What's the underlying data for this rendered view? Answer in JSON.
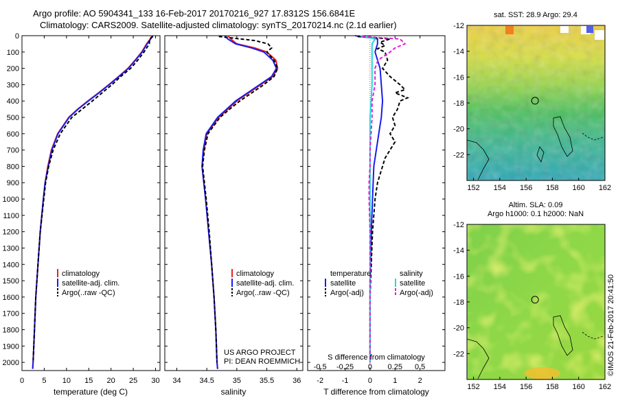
{
  "title_line1": "Argo profile: AO 5904341_133 16-Feb-2017 20170216_927 17.8312S 156.6841E",
  "title_line2": "Climatology: CARS2009. Satellite-adjusted climatology: synTS_20170214.nc (2.1d earlier)",
  "timestamp": "©IMOS 21-Feb-2017 20:41:50",
  "credit_line1": "US ARGO PROJECT",
  "credit_line2": "PI: DEAN ROEMMICH",
  "colors": {
    "climatology": "#e8201a",
    "satellite": "#1a1aee",
    "argo": "#000000",
    "sat_salinity": "#22d8dc",
    "argo_salinity": "#e020d8"
  },
  "chart_data": [
    {
      "type": "line",
      "xlabel": "temperature (deg C)",
      "ylabel": "",
      "xlim": [
        0,
        31
      ],
      "ylim": [
        2050,
        0
      ],
      "xticks": [
        "0",
        "5",
        "10",
        "15",
        "20",
        "25",
        "30"
      ],
      "yticks": [
        "0",
        "100",
        "200",
        "300",
        "400",
        "500",
        "600",
        "700",
        "800",
        "900",
        "1000",
        "1100",
        "1200",
        "1300",
        "1400",
        "1500",
        "1600",
        "1700",
        "1800",
        "1900",
        "2000"
      ],
      "legend": [
        "climatology",
        "satellite-adj. clim.",
        "Argo(..raw -QC)"
      ],
      "series": [
        {
          "name": "climatology",
          "depth": [
            0,
            20,
            50,
            100,
            150,
            200,
            250,
            300,
            350,
            400,
            450,
            500,
            600,
            700,
            800,
            900,
            1000,
            1200,
            1400,
            1600,
            1800,
            2000,
            2040
          ],
          "values": [
            29.2,
            28.8,
            28.0,
            26.9,
            25.4,
            23.8,
            21.7,
            19.5,
            17.2,
            14.8,
            12.5,
            10.5,
            8.0,
            6.6,
            5.8,
            5.2,
            4.8,
            4.1,
            3.6,
            3.1,
            2.8,
            2.5,
            2.4
          ]
        },
        {
          "name": "satellite-adj. clim.",
          "depth": [
            0,
            20,
            50,
            100,
            150,
            200,
            250,
            300,
            350,
            400,
            450,
            500,
            600,
            700,
            800,
            900,
            1000,
            1200,
            1400,
            1600,
            1800,
            2000,
            2040
          ],
          "values": [
            29.4,
            28.9,
            28.1,
            27.0,
            25.5,
            23.9,
            21.8,
            19.6,
            17.3,
            14.9,
            12.6,
            10.6,
            8.1,
            6.7,
            5.9,
            5.2,
            4.8,
            4.1,
            3.6,
            3.1,
            2.8,
            2.5,
            2.4
          ]
        },
        {
          "name": "Argo(..raw -QC)",
          "depth": [
            5,
            20,
            50,
            100,
            150,
            200,
            250,
            300,
            350,
            400,
            450,
            500,
            600,
            700,
            800,
            900,
            1000,
            1200,
            1400,
            1600,
            1800,
            2000
          ],
          "values": [
            29.4,
            28.7,
            28.6,
            27.4,
            26.0,
            24.4,
            22.2,
            20.2,
            18.0,
            15.8,
            13.5,
            11.2,
            8.6,
            7.0,
            6.0,
            5.3,
            4.9,
            4.1,
            3.6,
            3.1,
            2.8,
            2.5
          ]
        }
      ]
    },
    {
      "type": "line",
      "xlabel": "salinity",
      "ylabel": "",
      "xlim": [
        33.8,
        36.1
      ],
      "ylim": [
        2050,
        0
      ],
      "xticks": [
        "34",
        "34.5",
        "35",
        "35.5",
        "36"
      ],
      "legend": [
        "climatology",
        "satellite-adj. clim.",
        "Argo(..raw -QC)"
      ],
      "series": [
        {
          "name": "climatology",
          "depth": [
            0,
            20,
            50,
            75,
            100,
            150,
            200,
            250,
            300,
            350,
            400,
            450,
            500,
            600,
            700,
            800,
            900,
            1000,
            1200,
            1400,
            1600,
            1800,
            2000,
            2040
          ],
          "values": [
            34.85,
            34.9,
            35.0,
            35.3,
            35.5,
            35.65,
            35.68,
            35.6,
            35.4,
            35.2,
            35.0,
            34.85,
            34.7,
            34.5,
            34.45,
            34.42,
            34.45,
            34.48,
            34.53,
            34.58,
            34.62,
            34.65,
            34.67,
            34.68
          ]
        },
        {
          "name": "satellite-adj. clim.",
          "depth": [
            0,
            20,
            50,
            75,
            100,
            150,
            200,
            250,
            300,
            350,
            400,
            450,
            500,
            600,
            700,
            800,
            900,
            1000,
            1200,
            1400,
            1600,
            1800,
            2000,
            2040
          ],
          "values": [
            34.8,
            34.85,
            34.98,
            35.25,
            35.45,
            35.6,
            35.66,
            35.58,
            35.38,
            35.18,
            34.98,
            34.83,
            34.68,
            34.49,
            34.44,
            34.42,
            34.45,
            34.48,
            34.53,
            34.58,
            34.62,
            34.65,
            34.67,
            34.68
          ]
        },
        {
          "name": "Argo(..raw -QC)",
          "depth": [
            5,
            30,
            50,
            75,
            100,
            150,
            200,
            250,
            300,
            350,
            400,
            450,
            500,
            600,
            700,
            800,
            900,
            1000,
            1200,
            1400,
            1600,
            1800,
            2000
          ],
          "values": [
            34.7,
            35.3,
            35.52,
            35.58,
            35.5,
            35.62,
            35.68,
            35.62,
            35.45,
            35.25,
            35.05,
            34.88,
            34.72,
            34.52,
            34.46,
            34.43,
            34.46,
            34.49,
            34.54,
            34.58,
            34.62,
            34.65,
            34.67
          ]
        }
      ]
    },
    {
      "type": "line",
      "xlabel": "T difference from climatology",
      "xlabel2": "S difference from climatology",
      "xlim": [
        -2.5,
        3.0
      ],
      "xlim_salinity": [
        -0.625,
        0.75
      ],
      "ylim": [
        2050,
        0
      ],
      "xticks": [
        "-2",
        "-1",
        "0",
        "1",
        "2"
      ],
      "xticks_top": [
        "-0.5",
        "-0.25",
        "0",
        "0.25",
        "0.5"
      ],
      "legend_temperature_title": "temperature",
      "legend_salinity_title": "salinity",
      "legend_temperature": [
        "satellite",
        "Argo(-adj)"
      ],
      "legend_salinity": [
        "satellite",
        "Argo(-adj)"
      ],
      "series": [
        {
          "name": "satellite",
          "group": "temperature",
          "depth": [
            0,
            20,
            50,
            100,
            200,
            300,
            400,
            500,
            600,
            700,
            800,
            1000,
            1200,
            1500,
            2000
          ],
          "values": [
            -0.6,
            0.3,
            0.3,
            0.2,
            0.4,
            0.45,
            0.5,
            0.45,
            0.35,
            0.25,
            0.15,
            0.1,
            0.05,
            0.0,
            0.0
          ]
        },
        {
          "name": "Argo(-adj)",
          "group": "temperature",
          "depth": [
            5,
            20,
            40,
            60,
            80,
            100,
            150,
            200,
            250,
            300,
            330,
            350,
            380,
            400,
            450,
            500,
            550,
            600,
            650,
            700,
            750,
            800,
            900,
            1000,
            1200,
            1400,
            1600,
            1800,
            2000
          ],
          "values": [
            -0.5,
            0.8,
            0.4,
            0.6,
            0.3,
            0.6,
            0.7,
            0.5,
            0.8,
            1.2,
            1.4,
            1.0,
            1.5,
            1.2,
            1.1,
            0.9,
            1.0,
            0.8,
            1.0,
            0.8,
            0.6,
            0.5,
            0.3,
            0.2,
            0.1,
            0.05,
            0.0,
            0.0,
            0.0
          ]
        },
        {
          "name": "satellite",
          "group": "salinity",
          "depth": [
            0,
            20,
            50,
            100,
            200,
            300,
            400,
            500,
            700,
            1000,
            1500,
            2000
          ],
          "values": [
            -0.1,
            0.05,
            0.02,
            0.02,
            0.02,
            0.02,
            0.01,
            0.0,
            0.0,
            0.0,
            0.0,
            0.0
          ]
        },
        {
          "name": "Argo(-adj)",
          "group": "salinity",
          "depth": [
            5,
            20,
            50,
            75,
            100,
            150,
            200,
            300,
            400,
            500,
            600,
            700,
            800,
            900,
            1000,
            1200,
            1500,
            2000
          ],
          "values": [
            -0.08,
            0.3,
            0.35,
            0.25,
            0.2,
            0.08,
            0.05,
            0.05,
            0.02,
            0.02,
            0.01,
            0.0,
            0.0,
            -0.01,
            -0.01,
            0.0,
            0.0,
            0.0
          ]
        }
      ]
    },
    {
      "type": "heatmap",
      "title": "sat. SST: 28.9  Argo: 29.4",
      "xlim": [
        151.5,
        162
      ],
      "ylim": [
        -24,
        -12
      ],
      "xticks": [
        "152",
        "154",
        "156",
        "158",
        "160",
        "162"
      ],
      "yticks": [
        "-12",
        "-14",
        "-16",
        "-18",
        "-20",
        "-22"
      ],
      "marker": {
        "lon": 156.68,
        "lat": -17.83
      }
    },
    {
      "type": "heatmap",
      "title": "Altim. SLA: 0.09",
      "subtitle": "Argo h1000: 0.1 h2000: NaN",
      "xlim": [
        151.5,
        162
      ],
      "ylim": [
        -24,
        -12
      ],
      "xticks": [
        "152",
        "154",
        "156",
        "158",
        "160",
        "162"
      ],
      "yticks": [
        "-12",
        "-14",
        "-16",
        "-18",
        "-20",
        "-22"
      ],
      "marker": {
        "lon": 156.68,
        "lat": -17.83
      }
    }
  ]
}
